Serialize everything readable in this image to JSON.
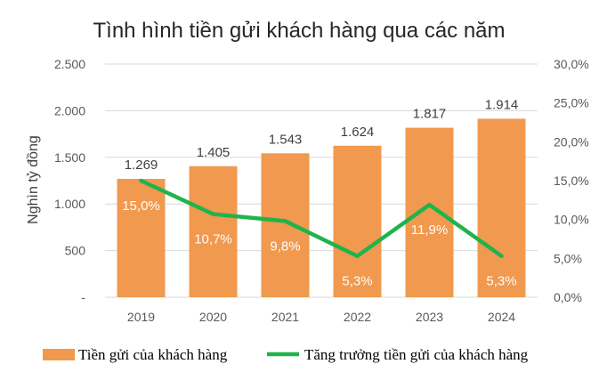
{
  "chart_data": {
    "type": "bar",
    "title": "Tình hình tiền gửi khách hàng qua các năm",
    "categories": [
      "2019",
      "2020",
      "2021",
      "2022",
      "2023",
      "2024"
    ],
    "series": [
      {
        "name": "Tiền gửi của khách hàng",
        "chart_type": "bar",
        "axis": "left",
        "color": "#f0994f",
        "values": [
          1269,
          1405,
          1543,
          1624,
          1817,
          1914
        ],
        "labels": [
          "1.269",
          "1.405",
          "1.543",
          "1.624",
          "1.817",
          "1.914"
        ]
      },
      {
        "name": "Tăng trưởng tiền gửi của khách hàng",
        "chart_type": "line",
        "axis": "right",
        "color": "#1fb44b",
        "values": [
          15.0,
          10.7,
          9.8,
          5.3,
          11.9,
          5.3
        ],
        "labels": [
          "15,0%",
          "10,7%",
          "9,8%",
          "5,3%",
          "11,9%",
          "5,3%"
        ]
      }
    ],
    "ylabel": "Nghìn tỷ đồng",
    "y_left": {
      "range": [
        0,
        2500
      ],
      "ticks": [
        0,
        500,
        1000,
        1500,
        2000,
        2500
      ],
      "tick_labels": [
        "-",
        "500",
        "1.000",
        "1.500",
        "2.000",
        "2.500"
      ]
    },
    "y_right": {
      "range": [
        0,
        30
      ],
      "ticks": [
        0,
        5,
        10,
        15,
        20,
        25,
        30
      ],
      "tick_labels": [
        "0,0%",
        "5,0%",
        "10,0%",
        "15,0%",
        "20,0%",
        "25,0%",
        "30,0%"
      ]
    },
    "grid": true,
    "legend_position": "bottom"
  }
}
